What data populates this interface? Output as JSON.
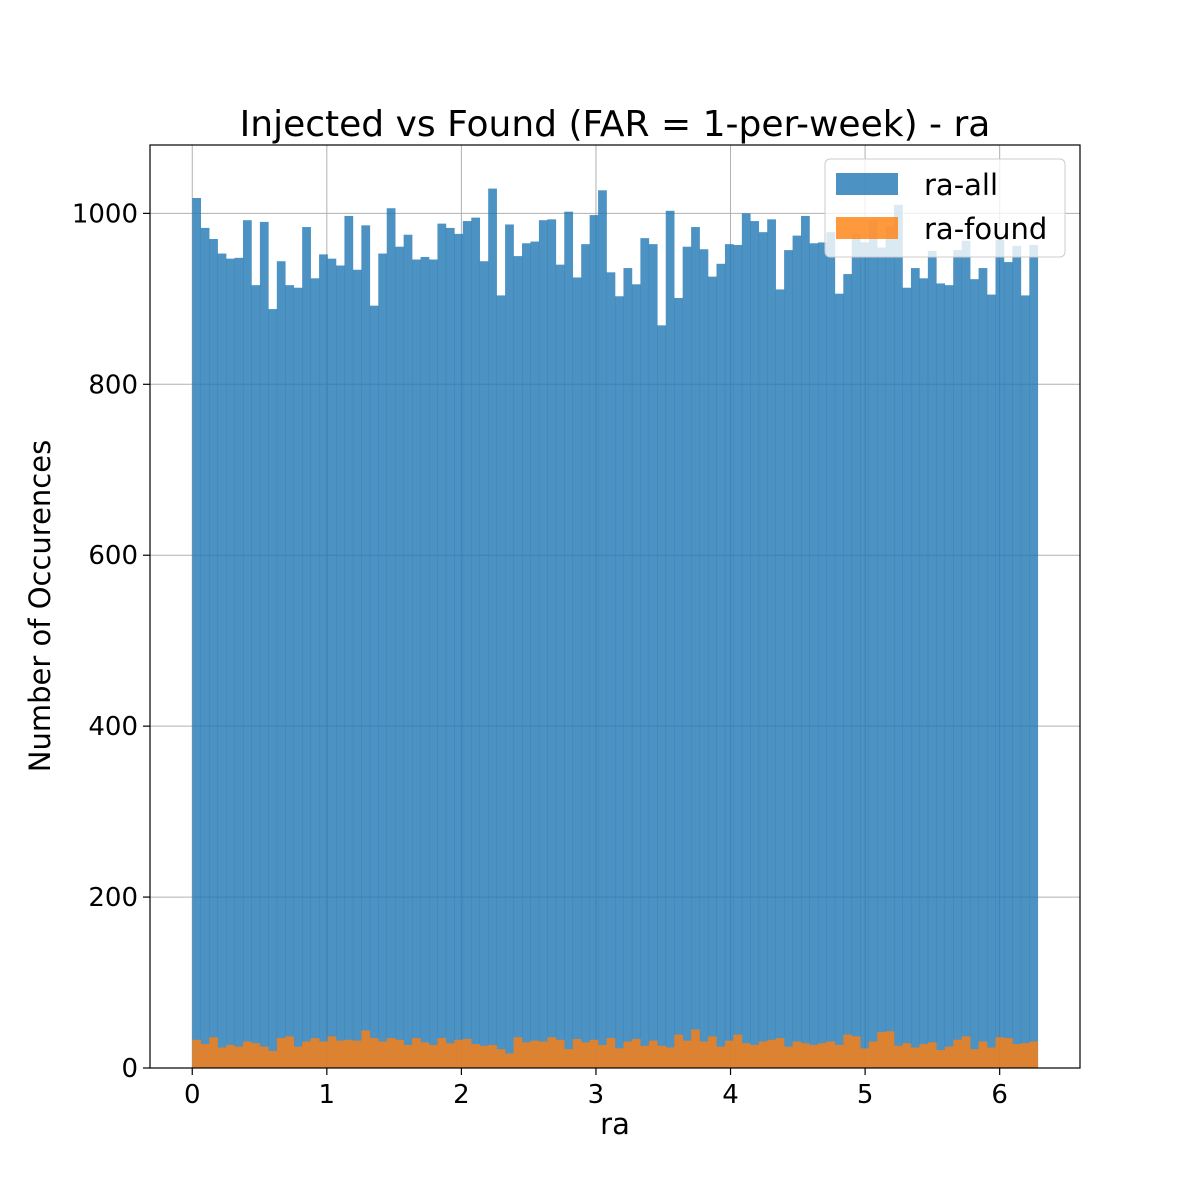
{
  "chart_data": {
    "type": "bar",
    "title": "Injected vs Found (FAR = 1-per-week) - ra",
    "xlabel": "ra",
    "ylabel": "Number of Occurences",
    "xlim": [
      -0.314,
      6.597
    ],
    "ylim": [
      0,
      1080
    ],
    "grid": true,
    "legend_position": "top-right",
    "x_ticks": [
      0,
      1,
      2,
      3,
      4,
      5,
      6
    ],
    "y_ticks": [
      0,
      200,
      400,
      600,
      800,
      1000
    ],
    "bin_range": [
      0,
      6.2832
    ],
    "bins": 100,
    "colors": {
      "ra-all": "#1f77b4",
      "ra-found": "#ff7f0e"
    },
    "series": [
      {
        "name": "ra-all",
        "opacity": 0.8,
        "values": [
          1018,
          983,
          970,
          953,
          947,
          948,
          992,
          916,
          990,
          888,
          944,
          916,
          913,
          984,
          924,
          952,
          947,
          939,
          997,
          934,
          986,
          892,
          953,
          1006,
          961,
          975,
          946,
          949,
          946,
          988,
          983,
          976,
          991,
          995,
          944,
          1029,
          904,
          987,
          950,
          965,
          967,
          992,
          993,
          940,
          1002,
          925,
          964,
          998,
          1027,
          931,
          903,
          936,
          917,
          971,
          964,
          869,
          1003,
          901,
          961,
          984,
          958,
          926,
          941,
          964,
          963,
          1000,
          991,
          978,
          993,
          911,
          957,
          974,
          997,
          965,
          966,
          978,
          906,
          929,
          976,
          966,
          992,
          960,
          985,
          1010,
          913,
          936,
          924,
          956,
          918,
          916,
          957,
          968,
          923,
          936,
          905,
          969,
          943,
          962,
          904,
          963
        ]
      },
      {
        "name": "ra-found",
        "opacity": 0.8,
        "values": [
          33,
          28,
          36,
          24,
          27,
          25,
          31,
          29,
          25,
          20,
          35,
          37,
          25,
          31,
          35,
          31,
          37,
          32,
          33,
          32,
          44,
          35,
          31,
          35,
          33,
          27,
          35,
          30,
          27,
          35,
          29,
          33,
          34,
          28,
          26,
          27,
          22,
          17,
          36,
          30,
          32,
          31,
          36,
          33,
          22,
          34,
          30,
          33,
          27,
          35,
          23,
          31,
          34,
          26,
          32,
          26,
          24,
          39,
          32,
          45,
          31,
          37,
          25,
          32,
          39,
          29,
          27,
          31,
          33,
          35,
          25,
          31,
          29,
          27,
          29,
          31,
          27,
          39,
          37,
          23,
          31,
          42,
          43,
          26,
          29,
          24,
          28,
          30,
          21,
          25,
          33,
          37,
          22,
          31,
          24,
          36,
          35,
          28,
          29,
          31
        ]
      }
    ]
  }
}
